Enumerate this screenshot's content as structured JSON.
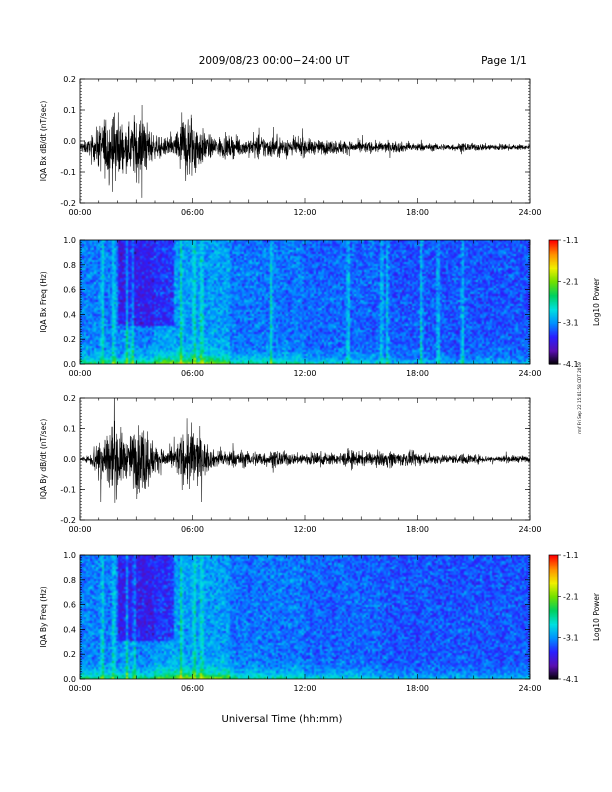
{
  "header": {
    "title": "2009/08/23  00:00−24:00 UT",
    "page": "Page 1/1"
  },
  "footer": {
    "xlabel": "Universal Time (hh:mm)",
    "stamp": "rmf Fri Sep 22 15:01:58 CDT 2019"
  },
  "colorbar": {
    "label": "Log10 Power",
    "ticks": [
      "-1.1",
      "-2.1",
      "-3.1",
      "-4.1"
    ],
    "range": [
      -4.1,
      -1.1
    ],
    "colors": [
      "#000000",
      "#5a0fb0",
      "#2a1fff",
      "#0090ff",
      "#00e0e0",
      "#00d060",
      "#70e000",
      "#f0f000",
      "#ff9000",
      "#ff0000"
    ]
  },
  "chart_data": [
    {
      "type": "line",
      "id": "bx-dbdt",
      "ylabel": "IQA Bx dB/dt (nT/sec)",
      "ylim": [
        -0.2,
        0.2
      ],
      "yticks": [
        "0.2",
        "0.1",
        "0.0",
        "-0.1",
        "-0.2"
      ],
      "x_range": [
        "00:00",
        "24:00"
      ],
      "x_ticks": [
        "00:00",
        "06:00",
        "12:00",
        "18:00",
        "24:00"
      ],
      "envelope": {
        "x_hours": [
          0,
          0.5,
          1,
          1.5,
          2,
          2.5,
          3,
          3.5,
          4,
          4.5,
          5,
          5.5,
          6,
          6.5,
          7,
          7.5,
          8,
          8.5,
          9,
          9.5,
          10,
          10.5,
          11,
          11.5,
          12,
          12.5,
          13,
          13.5,
          14,
          14.5,
          15,
          15.5,
          16,
          16.5,
          17,
          17.5,
          18,
          18.5,
          19,
          19.5,
          20,
          20.5,
          21,
          21.5,
          22,
          22.5,
          23,
          23.5,
          24
        ],
        "amplitude": [
          0.03,
          0.04,
          0.12,
          0.2,
          0.2,
          0.1,
          0.2,
          0.15,
          0.06,
          0.05,
          0.06,
          0.2,
          0.2,
          0.1,
          0.06,
          0.06,
          0.06,
          0.05,
          0.05,
          0.07,
          0.06,
          0.06,
          0.06,
          0.05,
          0.05,
          0.04,
          0.04,
          0.04,
          0.04,
          0.035,
          0.035,
          0.03,
          0.03,
          0.03,
          0.03,
          0.025,
          0.025,
          0.02,
          0.02,
          0.02,
          0.02,
          0.025,
          0.02,
          0.02,
          0.02,
          0.02,
          0.015,
          0.015,
          0.015
        ],
        "offset": -0.02
      }
    },
    {
      "type": "heatmap",
      "id": "bx-spectrogram",
      "ylabel": "IQA Bx Freq (Hz)",
      "ylim": [
        0.0,
        1.0
      ],
      "yticks": [
        "1.0",
        "0.8",
        "0.6",
        "0.4",
        "0.2",
        "0.0"
      ],
      "x_range": [
        "00:00",
        "24:00"
      ],
      "x_ticks": [
        "00:00",
        "06:00",
        "12:00",
        "18:00",
        "24:00"
      ],
      "z_range": [
        -4.1,
        -1.1
      ],
      "broadband_bursts_hours": [
        1.2,
        1.8,
        2.5,
        2.8,
        5.4,
        6.1,
        6.5,
        10.2,
        14.3,
        16.1,
        16.4,
        18.2,
        19.1,
        20.4
      ]
    },
    {
      "type": "line",
      "id": "by-dbdt",
      "ylabel": "IQA By dB/dt (nT/sec)",
      "ylim": [
        -0.2,
        0.2
      ],
      "yticks": [
        "0.2",
        "0.1",
        "0.0",
        "-0.1",
        "-0.2"
      ],
      "x_range": [
        "00:00",
        "24:00"
      ],
      "x_ticks": [
        "00:00",
        "06:00",
        "12:00",
        "18:00",
        "24:00"
      ],
      "envelope": {
        "x_hours": [
          0,
          0.5,
          1,
          1.5,
          2,
          2.5,
          3,
          3.5,
          4,
          4.5,
          5,
          5.5,
          6,
          6.5,
          7,
          7.5,
          8,
          8.5,
          9,
          9.5,
          10,
          10.5,
          11,
          11.5,
          12,
          12.5,
          13,
          13.5,
          14,
          14.5,
          15,
          15.5,
          16,
          16.5,
          17,
          17.5,
          18,
          18.5,
          19,
          19.5,
          20,
          20.5,
          21,
          21.5,
          22,
          22.5,
          23,
          23.5,
          24
        ],
        "amplitude": [
          0.01,
          0.02,
          0.15,
          0.2,
          0.2,
          0.1,
          0.2,
          0.2,
          0.08,
          0.06,
          0.06,
          0.15,
          0.2,
          0.12,
          0.05,
          0.05,
          0.05,
          0.05,
          0.04,
          0.05,
          0.04,
          0.05,
          0.04,
          0.03,
          0.04,
          0.04,
          0.04,
          0.03,
          0.04,
          0.05,
          0.04,
          0.035,
          0.04,
          0.05,
          0.04,
          0.04,
          0.04,
          0.03,
          0.03,
          0.025,
          0.025,
          0.03,
          0.03,
          0.02,
          0.02,
          0.02,
          0.02,
          0.02,
          0.015
        ],
        "offset": 0.0
      }
    },
    {
      "type": "heatmap",
      "id": "by-spectrogram",
      "ylabel": "IQA By Freq (Hz)",
      "ylim": [
        0.0,
        1.0
      ],
      "yticks": [
        "1.0",
        "0.8",
        "0.6",
        "0.4",
        "0.2",
        "0.0"
      ],
      "x_range": [
        "00:00",
        "24:00"
      ],
      "x_ticks": [
        "00:00",
        "06:00",
        "12:00",
        "18:00",
        "24:00"
      ],
      "z_range": [
        -4.1,
        -1.1
      ],
      "broadband_bursts_hours": [
        1.2,
        1.8,
        2.5,
        2.9,
        5.4,
        6.1,
        6.5
      ]
    }
  ]
}
